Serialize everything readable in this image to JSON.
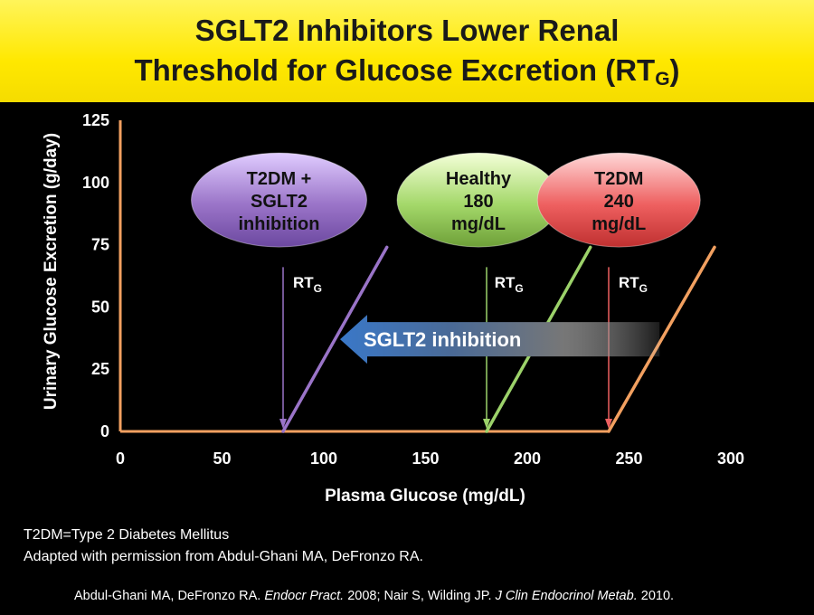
{
  "title": {
    "line1": "SGLT2 Inhibitors Lower Renal",
    "line2_main": "Threshold for Glucose Excretion (RT",
    "line2_sub": "G",
    "line2_end": ")"
  },
  "footnotes": {
    "abbrev": "T2DM=Type 2 Diabetes Mellitus",
    "adapted": "Adapted with permission from Abdul-Ghani MA, DeFronzo RA.",
    "ref_a": "Abdul-Ghani MA, DeFronzo RA. ",
    "ref_a_journal": "Endocr Pract.",
    "ref_b": " 2008; Nair S, Wilding JP. ",
    "ref_b_journal": "J Clin Endocrinol Metab.",
    "ref_c": " 2010."
  },
  "colors": {
    "axis": "#f2a060",
    "t2dm_sglt2": "#9a74c8",
    "healthy": "#9cd26a",
    "t2dm": "#f2a060",
    "arrow": "#3a78c8"
  },
  "chart_data": {
    "type": "line",
    "xlabel": "Plasma Glucose (mg/dL)",
    "ylabel": "Urinary Glucose Excretion (g/day)",
    "xlim": [
      0,
      300
    ],
    "ylim": [
      0,
      125
    ],
    "xticks": [
      0,
      50,
      100,
      150,
      200,
      250,
      300
    ],
    "yticks": [
      0,
      25,
      50,
      75,
      100,
      125
    ],
    "grid": false,
    "series": [
      {
        "name": "T2DM + SGLT2 inhibition",
        "label_lines": [
          "T2DM +",
          "SGLT2",
          "inhibition"
        ],
        "color": "#9a74c8",
        "threshold": 80,
        "x": [
          80,
          131
        ],
        "y": [
          0,
          74
        ],
        "bubble": {
          "x": 78,
          "y": 93,
          "color": "#9a74c8"
        }
      },
      {
        "name": "Healthy 180 mg/dL",
        "label_lines": [
          "Healthy",
          "180",
          "mg/dL"
        ],
        "color": "#9cd26a",
        "threshold": 180,
        "x": [
          180,
          231
        ],
        "y": [
          0,
          74
        ],
        "bubble": {
          "x": 176,
          "y": 93,
          "color": "#9cd26a"
        }
      },
      {
        "name": "T2DM 240 mg/dL",
        "label_lines": [
          "T2DM",
          "240",
          "mg/dL"
        ],
        "color": "#f2a060",
        "threshold": 240,
        "x": [
          240,
          292
        ],
        "y": [
          0,
          74
        ],
        "bubble": {
          "x": 245,
          "y": 93,
          "color": "#ee6060"
        }
      }
    ],
    "annotations": [
      {
        "text": "RT",
        "sub": "G",
        "x": 92,
        "y": 60
      },
      {
        "text": "RT",
        "sub": "G",
        "x": 191,
        "y": 60
      },
      {
        "text": "RT",
        "sub": "G",
        "x": 252,
        "y": 60
      },
      {
        "text": "SGLT2 inhibition",
        "arrow_from_x": 265,
        "arrow_to_x": 108,
        "y": 37
      }
    ]
  }
}
